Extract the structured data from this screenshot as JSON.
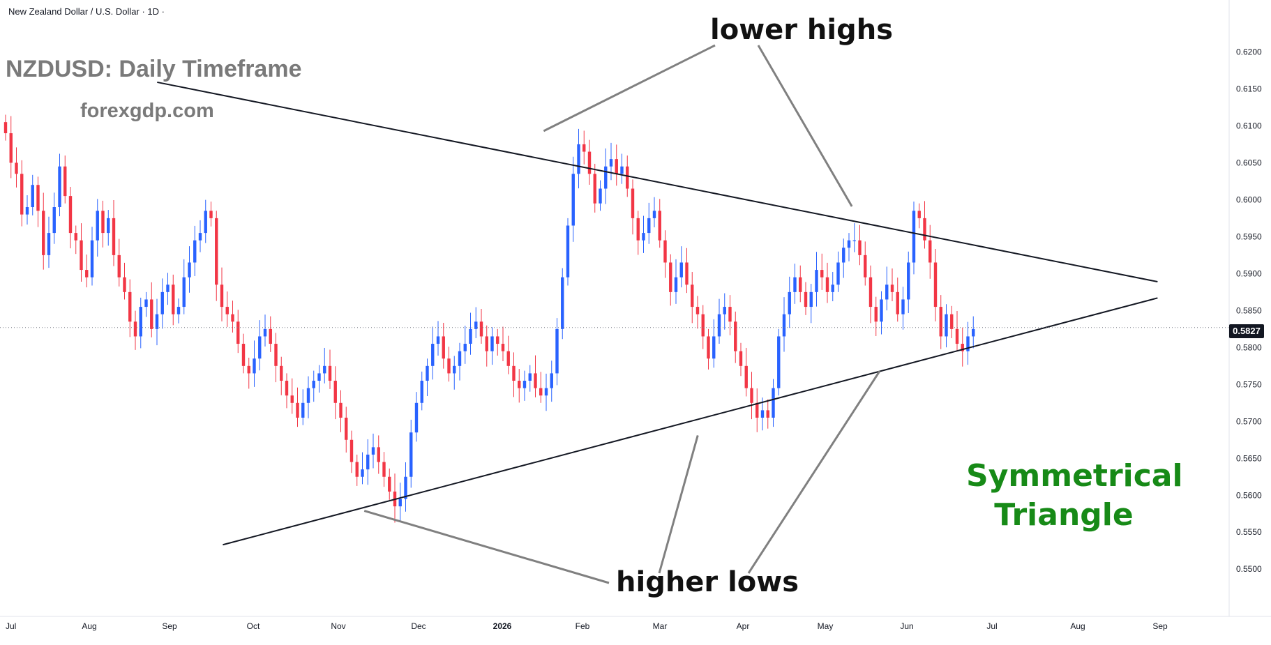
{
  "header": {
    "instrument": "New Zealand Dollar / U.S. Dollar · 1D ·"
  },
  "annotations": {
    "title": "NZDUSD: Daily Timeframe",
    "site": "forexgdp.com",
    "lower_highs": "lower highs",
    "higher_lows": "higher lows",
    "pattern_line1": "Symmetrical",
    "pattern_line2": "Triangle"
  },
  "colors": {
    "up": "#2962ff",
    "down": "#f23645",
    "trendline": "#131722",
    "pointer": "#808080",
    "pattern": "#178a17",
    "title": "#7a7a7a"
  },
  "chart_data": {
    "type": "candlestick",
    "instrument": "New Zealand Dollar / U.S. Dollar",
    "timeframe": "1D",
    "last_price": 0.5827,
    "last_price_label": "0.5827",
    "ylim": [
      0.547,
      0.6225
    ],
    "y_ticks": [
      "0.6200",
      "0.6150",
      "0.6100",
      "0.6050",
      "0.6000",
      "0.5950",
      "0.5900",
      "0.5850",
      "0.5800",
      "0.5750",
      "0.5700",
      "0.5650",
      "0.5600",
      "0.5550",
      "0.5500"
    ],
    "x_ticks": [
      "Jul",
      "Aug",
      "Sep",
      "Oct",
      "Nov",
      "Dec",
      "2026",
      "Feb",
      "Mar",
      "Apr",
      "May",
      "Jun",
      "Jul",
      "Aug",
      "Sep"
    ],
    "key_levels": {
      "lower_highs": [
        {
          "date": "2026-01-30",
          "price": 0.6093
        },
        {
          "date": "2026-06-01",
          "price": 0.5991
        }
      ],
      "higher_lows": [
        {
          "date": "2025-11-20",
          "price": 0.5579
        },
        {
          "date": "2026-04-01",
          "price": 0.5681
        },
        {
          "date": "2026-06-12",
          "price": 0.5768
        }
      ]
    },
    "trendlines": [
      {
        "name": "resistance",
        "from": {
          "date": "2025-08-30",
          "price": 0.6159
        },
        "to": {
          "date": "2026-09-30",
          "price": 0.5889
        }
      },
      {
        "name": "support",
        "from": {
          "date": "2025-09-25",
          "price": 0.5533
        },
        "to": {
          "date": "2026-09-30",
          "price": 0.5867
        }
      }
    ],
    "closes": [
      0.609,
      0.605,
      0.6035,
      0.598,
      0.599,
      0.602,
      0.5985,
      0.5925,
      0.5955,
      0.599,
      0.6045,
      0.6005,
      0.5955,
      0.5945,
      0.5905,
      0.5895,
      0.5945,
      0.5985,
      0.5955,
      0.5975,
      0.5925,
      0.5895,
      0.5875,
      0.5835,
      0.5815,
      0.5855,
      0.5865,
      0.5825,
      0.5845,
      0.5875,
      0.5885,
      0.5845,
      0.5855,
      0.5895,
      0.5915,
      0.5945,
      0.5955,
      0.5985,
      0.5975,
      0.5885,
      0.5855,
      0.5845,
      0.5835,
      0.5805,
      0.5775,
      0.5765,
      0.5785,
      0.5815,
      0.5825,
      0.5805,
      0.5775,
      0.5755,
      0.5735,
      0.5725,
      0.5705,
      0.5725,
      0.5745,
      0.5755,
      0.5765,
      0.5775,
      0.5755,
      0.5725,
      0.5705,
      0.5675,
      0.5645,
      0.5625,
      0.5635,
      0.5655,
      0.5665,
      0.5645,
      0.5625,
      0.5605,
      0.5585,
      0.5595,
      0.5625,
      0.5685,
      0.5725,
      0.5755,
      0.5775,
      0.5805,
      0.5815,
      0.5785,
      0.5765,
      0.5775,
      0.5795,
      0.5805,
      0.5825,
      0.5835,
      0.5815,
      0.5795,
      0.5815,
      0.5805,
      0.5795,
      0.5775,
      0.5755,
      0.5745,
      0.5755,
      0.5765,
      0.5745,
      0.5735,
      0.5745,
      0.5765,
      0.5825,
      0.5895,
      0.5965,
      0.6035,
      0.6075,
      0.6065,
      0.6035,
      0.5995,
      0.6015,
      0.6045,
      0.6055,
      0.6035,
      0.6045,
      0.6015,
      0.5975,
      0.5945,
      0.5955,
      0.5975,
      0.5985,
      0.5945,
      0.5915,
      0.5875,
      0.5895,
      0.5915,
      0.5885,
      0.5855,
      0.5845,
      0.5815,
      0.5785,
      0.5815,
      0.5845,
      0.5855,
      0.5835,
      0.5795,
      0.5775,
      0.5745,
      0.5725,
      0.5705,
      0.5715,
      0.5705,
      0.5745,
      0.5815,
      0.5845,
      0.5875,
      0.5895,
      0.5875,
      0.5855,
      0.5875,
      0.5905,
      0.5895,
      0.5875,
      0.5885,
      0.5915,
      0.5935,
      0.5945,
      0.5945,
      0.5925,
      0.5895,
      0.5855,
      0.5835,
      0.5865,
      0.5885,
      0.5875,
      0.5845,
      0.5865,
      0.5915,
      0.5985,
      0.5975,
      0.5945,
      0.5915,
      0.5855,
      0.5815,
      0.5845,
      0.5825,
      0.5805,
      0.5795,
      0.5815,
      0.5825
    ]
  }
}
